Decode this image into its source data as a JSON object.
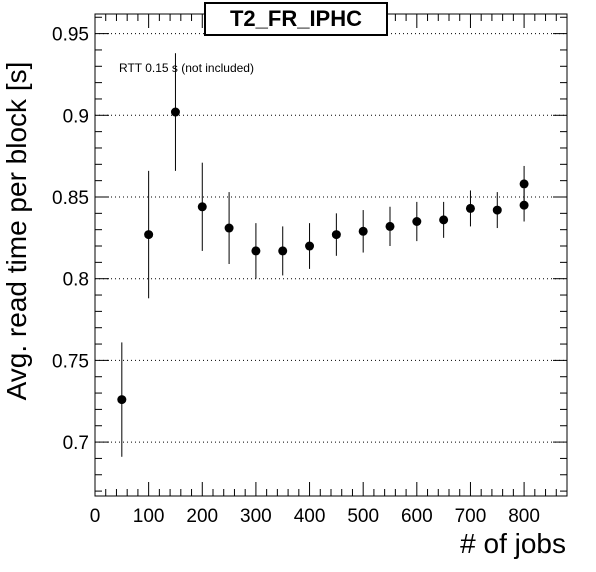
{
  "chart_data": {
    "type": "scatter",
    "title": "T2_FR_IPHC",
    "xlabel": "# of jobs",
    "ylabel": "Avg. read time per block [s]",
    "annotation": "RTT 0.15 s (not included)",
    "xlim": [
      0,
      880
    ],
    "ylim": [
      0.667,
      0.962
    ],
    "xticks": [
      0,
      100,
      200,
      300,
      400,
      500,
      600,
      700,
      800
    ],
    "yticks": [
      0.7,
      0.75,
      0.8,
      0.85,
      0.9,
      0.95
    ],
    "ytick_labels": [
      "0.7",
      "0.75",
      "0.8",
      "0.85",
      "0.9",
      "0.95"
    ],
    "grid": "horizontal dotted at y ticks",
    "series": [
      {
        "points": [
          {
            "x": 50,
            "y": 0.726,
            "err": 0.035
          },
          {
            "x": 100,
            "y": 0.827,
            "err": 0.039
          },
          {
            "x": 150,
            "y": 0.902,
            "err": 0.036
          },
          {
            "x": 200,
            "y": 0.844,
            "err": 0.027
          },
          {
            "x": 250,
            "y": 0.831,
            "err": 0.022
          },
          {
            "x": 300,
            "y": 0.817,
            "err": 0.017
          },
          {
            "x": 350,
            "y": 0.817,
            "err": 0.015
          },
          {
            "x": 400,
            "y": 0.82,
            "err": 0.014
          },
          {
            "x": 450,
            "y": 0.827,
            "err": 0.013
          },
          {
            "x": 500,
            "y": 0.829,
            "err": 0.013
          },
          {
            "x": 550,
            "y": 0.832,
            "err": 0.012
          },
          {
            "x": 600,
            "y": 0.835,
            "err": 0.012
          },
          {
            "x": 650,
            "y": 0.836,
            "err": 0.011
          },
          {
            "x": 700,
            "y": 0.843,
            "err": 0.011
          },
          {
            "x": 750,
            "y": 0.842,
            "err": 0.011
          },
          {
            "x": 800,
            "y": 0.845,
            "err": 0.01
          },
          {
            "x": 800,
            "y": 0.858,
            "err": 0.011
          }
        ]
      }
    ]
  }
}
